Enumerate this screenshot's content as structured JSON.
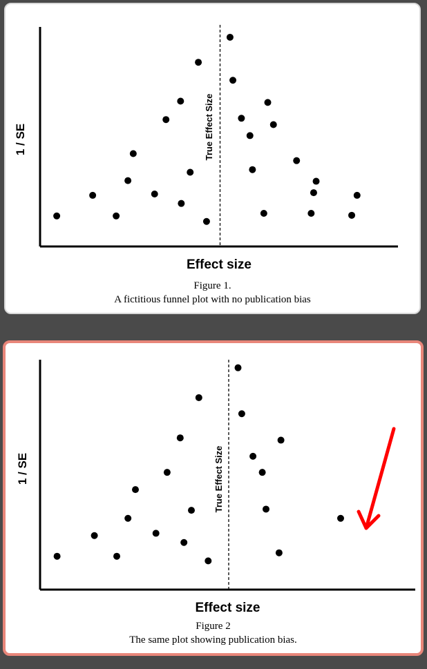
{
  "figures": [
    {
      "caption_number": "Figure 1.",
      "caption_text": "A fictitious funnel plot with no publication bias"
    },
    {
      "caption_number": "Figure 2",
      "caption_text": "The same plot showing publication bias."
    }
  ],
  "colors": {
    "background": "#4a4a4a",
    "highlight_border": "#e8867a",
    "arrow": "#ff0000"
  },
  "chart_data": [
    {
      "type": "scatter",
      "title": "",
      "xlabel": "Effect size",
      "ylabel": "1 / SE",
      "reference_line": {
        "label": "True Effect Size",
        "x": 50
      },
      "xlim": [
        0,
        100
      ],
      "ylim": [
        0,
        100
      ],
      "grid": false,
      "points": [
        {
          "x": 4.1,
          "y": 13.9
        },
        {
          "x": 14.2,
          "y": 23.3
        },
        {
          "x": 20.8,
          "y": 13.9
        },
        {
          "x": 24.1,
          "y": 30.0
        },
        {
          "x": 25.6,
          "y": 42.3
        },
        {
          "x": 31.6,
          "y": 23.9
        },
        {
          "x": 34.8,
          "y": 57.8
        },
        {
          "x": 38.9,
          "y": 66.2
        },
        {
          "x": 39.1,
          "y": 19.6
        },
        {
          "x": 41.6,
          "y": 33.8
        },
        {
          "x": 43.9,
          "y": 83.9
        },
        {
          "x": 46.2,
          "y": 11.4
        },
        {
          "x": 52.8,
          "y": 95.3
        },
        {
          "x": 53.6,
          "y": 75.7
        },
        {
          "x": 56.0,
          "y": 58.4
        },
        {
          "x": 58.4,
          "y": 50.5
        },
        {
          "x": 59.1,
          "y": 35.0
        },
        {
          "x": 62.3,
          "y": 15.1
        },
        {
          "x": 63.4,
          "y": 65.6
        },
        {
          "x": 65.0,
          "y": 55.5
        },
        {
          "x": 71.5,
          "y": 39.1
        },
        {
          "x": 75.6,
          "y": 15.1
        },
        {
          "x": 76.3,
          "y": 24.5
        },
        {
          "x": 77.0,
          "y": 29.7
        },
        {
          "x": 87.0,
          "y": 14.2
        },
        {
          "x": 88.5,
          "y": 23.3
        }
      ]
    },
    {
      "type": "scatter",
      "title": "",
      "xlabel": "Effect size",
      "ylabel": "1 / SE",
      "reference_line": {
        "label": "True Effect Size",
        "x": 50
      },
      "xlim": [
        0,
        100
      ],
      "ylim": [
        0,
        100
      ],
      "grid": false,
      "points": [
        {
          "x": 4.0,
          "y": 14.5
        },
        {
          "x": 14.0,
          "y": 23.5
        },
        {
          "x": 20.0,
          "y": 14.5
        },
        {
          "x": 23.0,
          "y": 31.0
        },
        {
          "x": 25.0,
          "y": 43.5
        },
        {
          "x": 30.5,
          "y": 24.5
        },
        {
          "x": 33.5,
          "y": 51.0
        },
        {
          "x": 37.0,
          "y": 66.0
        },
        {
          "x": 38.0,
          "y": 20.5
        },
        {
          "x": 40.0,
          "y": 34.5
        },
        {
          "x": 42.0,
          "y": 83.5
        },
        {
          "x": 44.5,
          "y": 12.5
        },
        {
          "x": 52.5,
          "y": 96.5
        },
        {
          "x": 53.5,
          "y": 76.5
        },
        {
          "x": 56.5,
          "y": 58.0
        },
        {
          "x": 59.0,
          "y": 51.0
        },
        {
          "x": 60.0,
          "y": 35.0
        },
        {
          "x": 63.5,
          "y": 16.0
        },
        {
          "x": 64.0,
          "y": 65.0
        },
        {
          "x": 80.0,
          "y": 31.0
        }
      ]
    }
  ]
}
